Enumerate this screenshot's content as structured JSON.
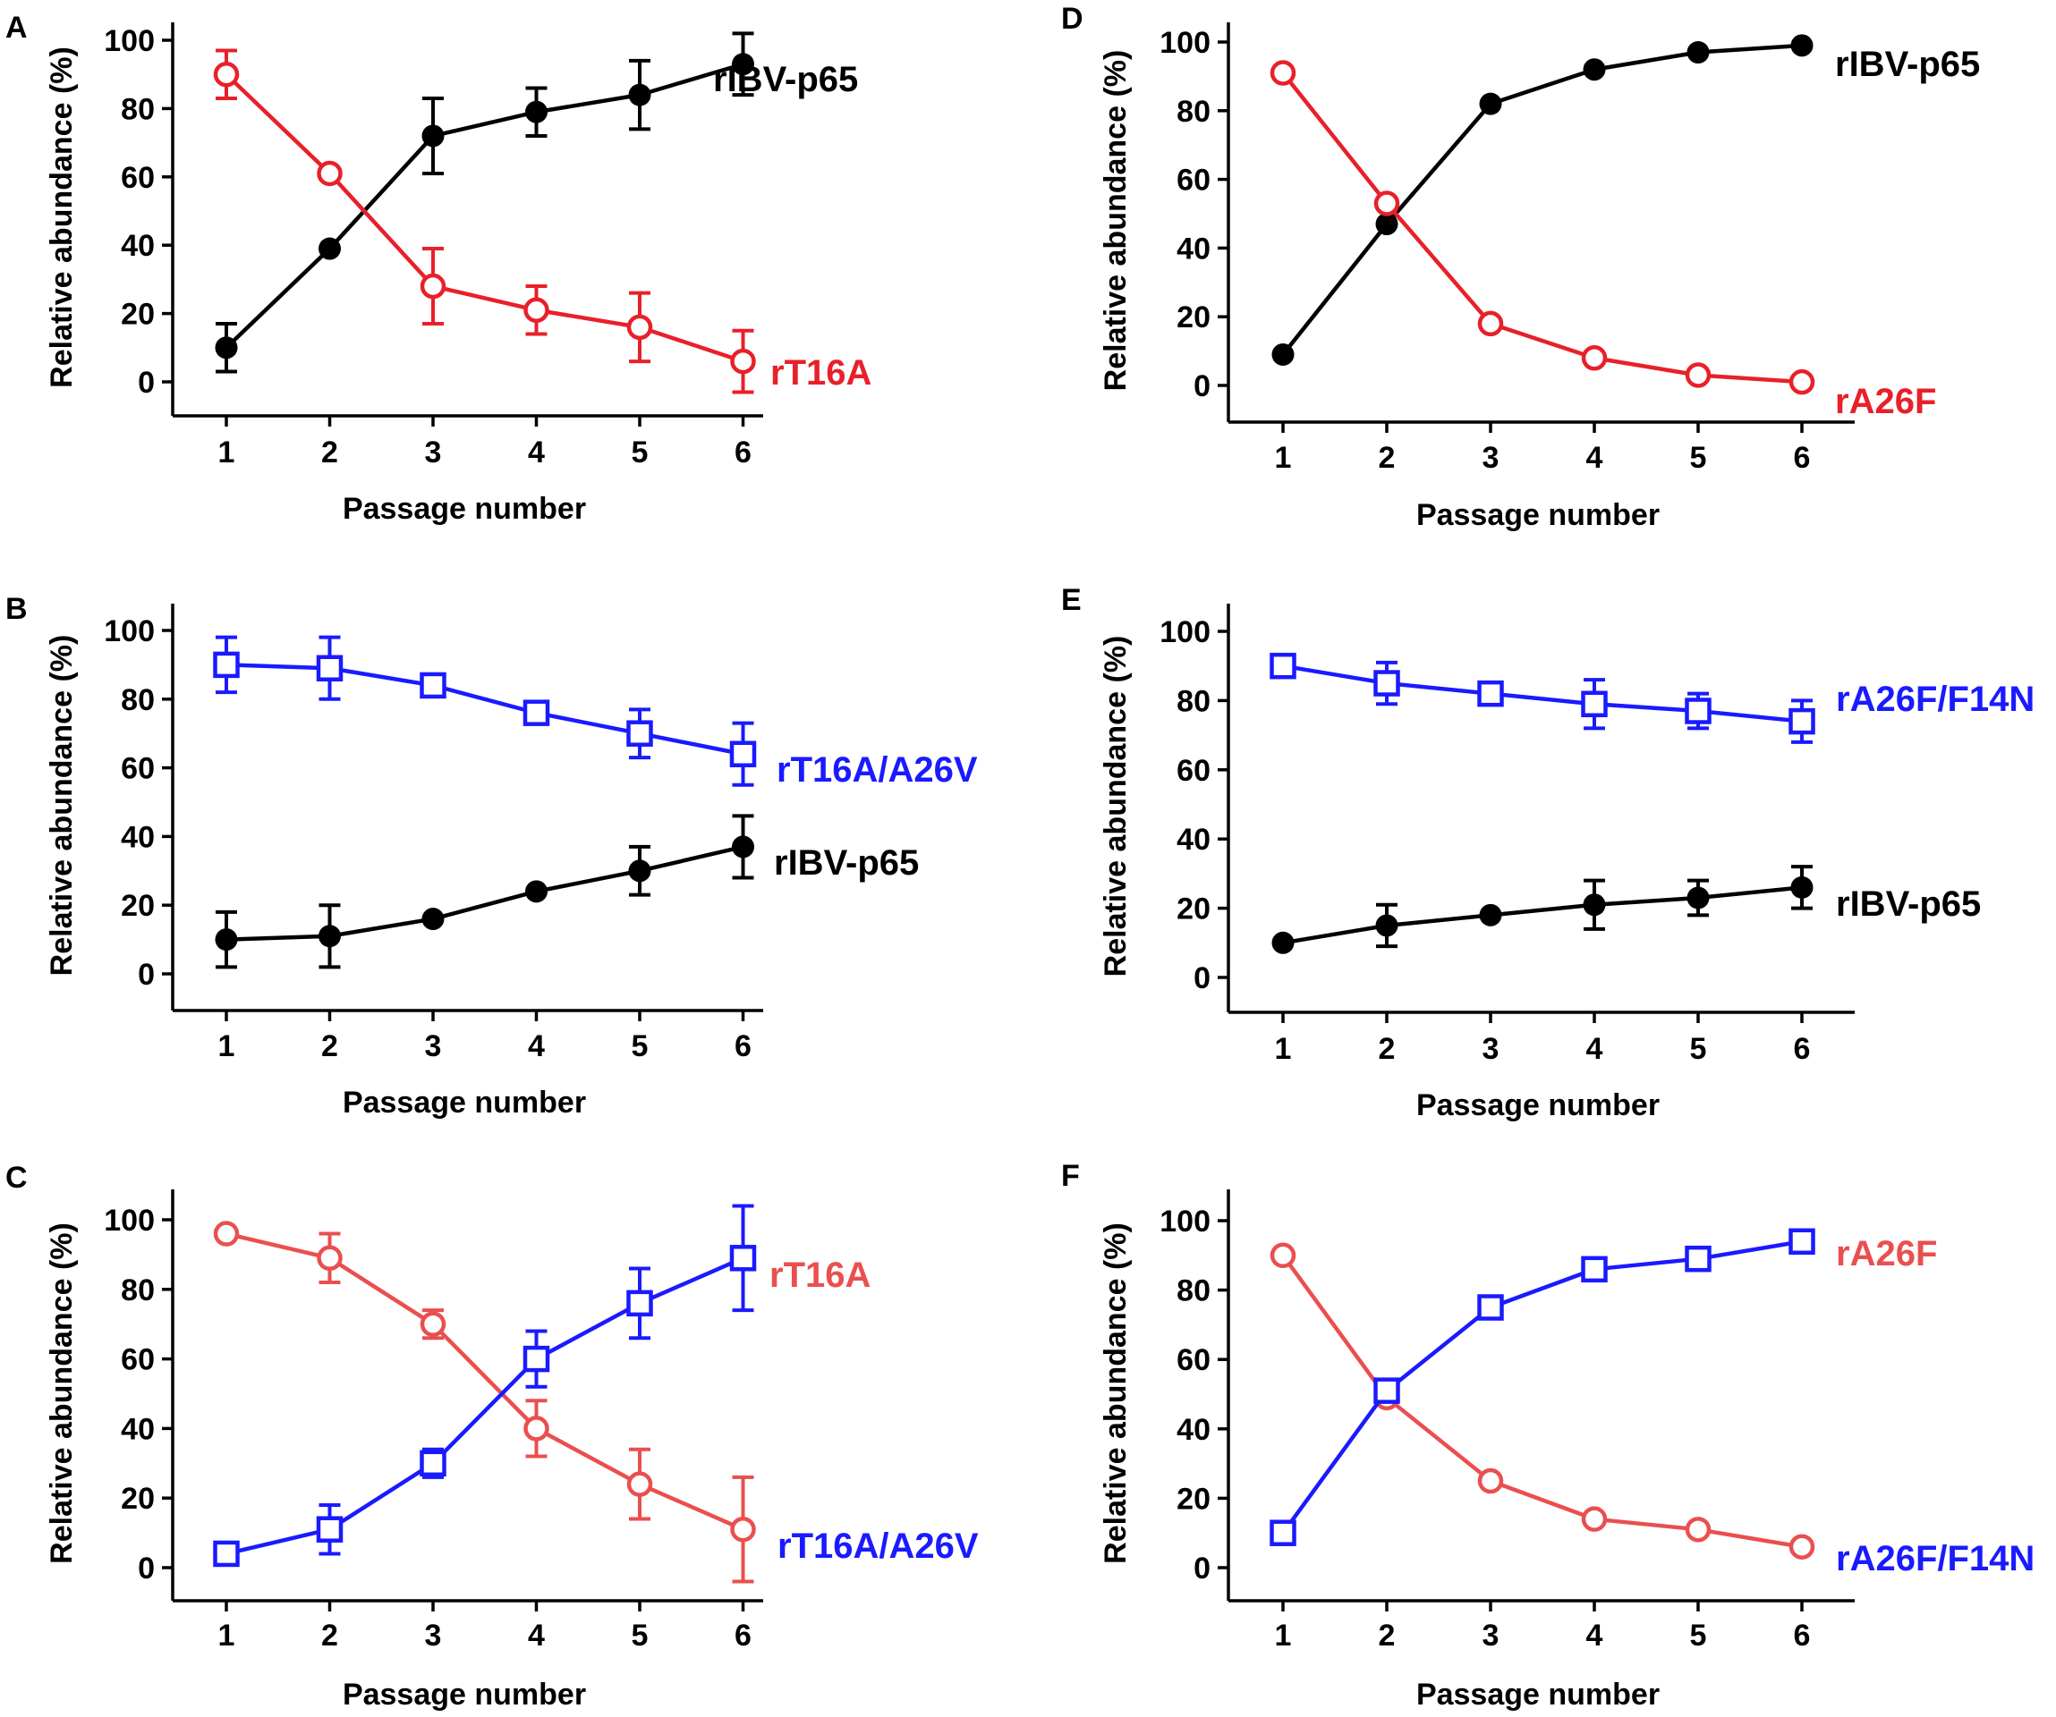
{
  "colors": {
    "black": "#000000",
    "red": "#e8202a",
    "light_red": "#ea4f4f",
    "blue": "#1a1aff"
  },
  "chart_data": [
    {
      "panel": "A",
      "type": "line",
      "xlabel": "Passage number",
      "ylabel": "Relative abundance (%)",
      "x": [
        1,
        2,
        3,
        4,
        5,
        6
      ],
      "ylim": [
        -10,
        110
      ],
      "yticks": [
        0,
        20,
        40,
        60,
        80,
        100
      ],
      "series": [
        {
          "name": "rIBV-p65",
          "color": "black",
          "marker": "filled-circle",
          "label_near": "top",
          "values": [
            10,
            39,
            72,
            79,
            84,
            93
          ],
          "errors": [
            7,
            0,
            11,
            7,
            10,
            9
          ]
        },
        {
          "name": "rT16A",
          "color": "red",
          "marker": "open-circle",
          "label_near": "bottom",
          "values": [
            90,
            61,
            28,
            21,
            16,
            6
          ],
          "errors": [
            7,
            0,
            11,
            7,
            10,
            9
          ]
        }
      ]
    },
    {
      "panel": "B",
      "type": "line",
      "xlabel": "Passage number",
      "ylabel": "Relative abundance (%)",
      "x": [
        1,
        2,
        3,
        4,
        5,
        6
      ],
      "ylim": [
        -10,
        110
      ],
      "yticks": [
        0,
        20,
        40,
        60,
        80,
        100
      ],
      "series": [
        {
          "name": "rT16A/A26V",
          "color": "blue",
          "marker": "open-square",
          "label_near": "bottom",
          "values": [
            90,
            89,
            84,
            76,
            70,
            64
          ],
          "errors": [
            8,
            9,
            0,
            0,
            7,
            9
          ]
        },
        {
          "name": "rIBV-p65",
          "color": "black",
          "marker": "filled-circle",
          "label_near": "top",
          "values": [
            10,
            11,
            16,
            24,
            30,
            37
          ],
          "errors": [
            8,
            9,
            0,
            0,
            7,
            9
          ]
        }
      ]
    },
    {
      "panel": "C",
      "type": "line",
      "xlabel": "Passage number",
      "ylabel": "Relative abundance (%)",
      "x": [
        1,
        2,
        3,
        4,
        5,
        6
      ],
      "ylim": [
        -10,
        110
      ],
      "yticks": [
        0,
        20,
        40,
        60,
        80,
        100
      ],
      "series": [
        {
          "name": "rT16A",
          "color": "light_red",
          "marker": "open-circle",
          "label_near": "bottom",
          "values": [
            96,
            89,
            70,
            40,
            24,
            11
          ],
          "errors": [
            0,
            7,
            4,
            8,
            10,
            15
          ]
        },
        {
          "name": "rT16A/A26V",
          "color": "blue",
          "marker": "open-square",
          "label_near": "top",
          "values": [
            4,
            11,
            30,
            60,
            76,
            89
          ],
          "errors": [
            0,
            7,
            4,
            8,
            10,
            15
          ]
        }
      ]
    },
    {
      "panel": "D",
      "type": "line",
      "xlabel": "Passage number",
      "ylabel": "Relative abundance (%)",
      "x": [
        1,
        2,
        3,
        4,
        5,
        6
      ],
      "ylim": [
        -10,
        110
      ],
      "yticks": [
        0,
        20,
        40,
        60,
        80,
        100
      ],
      "series": [
        {
          "name": "rIBV-p65",
          "color": "black",
          "marker": "filled-circle",
          "label_near": "top",
          "values": [
            9,
            47,
            82,
            92,
            97,
            99
          ],
          "errors": [
            0,
            0,
            0,
            0,
            0,
            0
          ]
        },
        {
          "name": "rA26F",
          "color": "red",
          "marker": "open-circle",
          "label_near": "bottom",
          "values": [
            91,
            53,
            18,
            8,
            3,
            1
          ],
          "errors": [
            0,
            0,
            0,
            0,
            0,
            0
          ]
        }
      ]
    },
    {
      "panel": "E",
      "type": "line",
      "xlabel": "Passage number",
      "ylabel": "Relative abundance (%)",
      "x": [
        1,
        2,
        3,
        4,
        5,
        6
      ],
      "ylim": [
        -10,
        110
      ],
      "yticks": [
        0,
        20,
        40,
        60,
        80,
        100
      ],
      "series": [
        {
          "name": "rA26F/F14N",
          "color": "blue",
          "marker": "open-square",
          "label_near": "bottom",
          "values": [
            90,
            85,
            82,
            79,
            77,
            74
          ],
          "errors": [
            0,
            6,
            0,
            7,
            5,
            6
          ]
        },
        {
          "name": "rIBV-p65",
          "color": "black",
          "marker": "filled-circle",
          "label_near": "top",
          "values": [
            10,
            15,
            18,
            21,
            23,
            26
          ],
          "errors": [
            0,
            6,
            0,
            7,
            5,
            6
          ]
        }
      ]
    },
    {
      "panel": "F",
      "type": "line",
      "xlabel": "Passage number",
      "ylabel": "Relative abundance (%)",
      "x": [
        1,
        2,
        3,
        4,
        5,
        6
      ],
      "ylim": [
        -10,
        110
      ],
      "yticks": [
        0,
        20,
        40,
        60,
        80,
        100
      ],
      "series": [
        {
          "name": "rA26F",
          "color": "light_red",
          "marker": "open-circle",
          "label_near": "bottom",
          "values": [
            90,
            49,
            25,
            14,
            11,
            6
          ],
          "errors": [
            0,
            0,
            0,
            0,
            0,
            0
          ]
        },
        {
          "name": "rA26F/F14N",
          "color": "blue",
          "marker": "open-square",
          "label_near": "top",
          "values": [
            10,
            51,
            75,
            86,
            89,
            94
          ],
          "errors": [
            0,
            0,
            0,
            0,
            0,
            0
          ]
        }
      ]
    }
  ]
}
